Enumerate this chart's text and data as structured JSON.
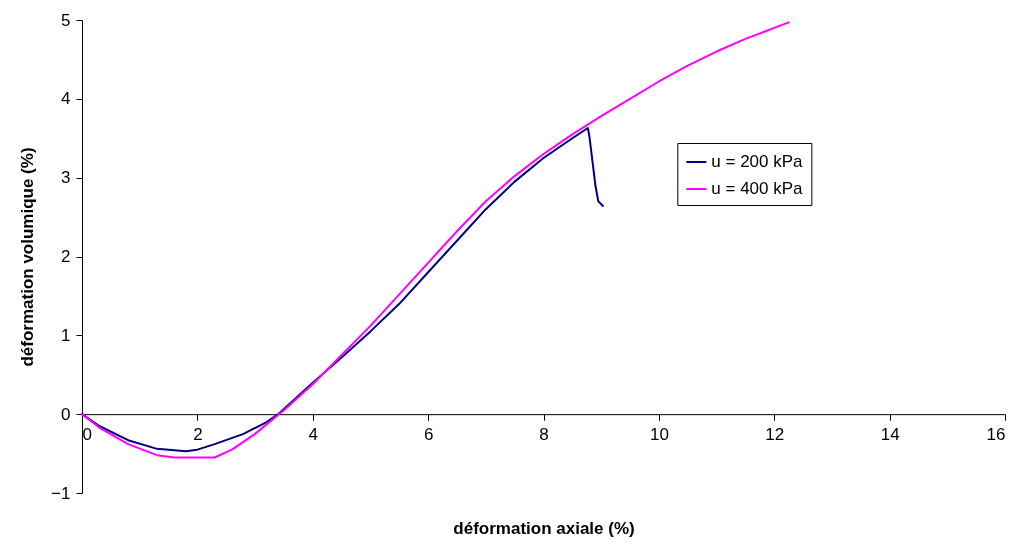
{
  "chart_data": {
    "type": "line",
    "xlabel": "déformation axiale (%)",
    "ylabel": "déformation volumique (%)",
    "xlim": [
      0,
      16
    ],
    "ylim": [
      -1,
      5
    ],
    "xticks": [
      0,
      2,
      4,
      6,
      8,
      10,
      12,
      14,
      16
    ],
    "yticks": [
      -1,
      0,
      1,
      2,
      3,
      4,
      5
    ],
    "grid": false,
    "legend": "right",
    "marker": "none",
    "line_style": "solid",
    "series": [
      {
        "name": "u = 200 kPa",
        "color": "#000080",
        "x": [
          0,
          0.3,
          0.8,
          1.3,
          1.8,
          2.0,
          2.3,
          2.8,
          3.2,
          3.4,
          3.7,
          4,
          4.5,
          5,
          5.5,
          6,
          6.5,
          7,
          7.5,
          8,
          8.5,
          8.77,
          8.8,
          8.85,
          8.9,
          8.95,
          9.03
        ],
        "values": [
          0,
          -0.15,
          -0.33,
          -0.44,
          -0.47,
          -0.45,
          -0.38,
          -0.25,
          -0.1,
          0,
          0.2,
          0.4,
          0.72,
          1.05,
          1.4,
          1.8,
          2.2,
          2.6,
          2.95,
          3.25,
          3.5,
          3.63,
          3.5,
          3.2,
          2.9,
          2.7,
          2.64
        ]
      },
      {
        "name": "u = 400 kPa",
        "color": "#ff00ff",
        "x": [
          0,
          0.3,
          0.8,
          1.3,
          1.6,
          2.3,
          2.6,
          3,
          3.5,
          4,
          4.5,
          5,
          5.5,
          6,
          6.5,
          7,
          7.5,
          8,
          8.5,
          9,
          9.5,
          10,
          10.5,
          11,
          11.5,
          12,
          12.25
        ],
        "values": [
          0,
          -0.17,
          -0.38,
          -0.52,
          -0.55,
          -0.55,
          -0.45,
          -0.25,
          0.05,
          0.38,
          0.75,
          1.12,
          1.52,
          1.92,
          2.32,
          2.7,
          3.02,
          3.3,
          3.55,
          3.78,
          4.0,
          4.22,
          4.42,
          4.6,
          4.76,
          4.9,
          4.97
        ]
      }
    ]
  }
}
